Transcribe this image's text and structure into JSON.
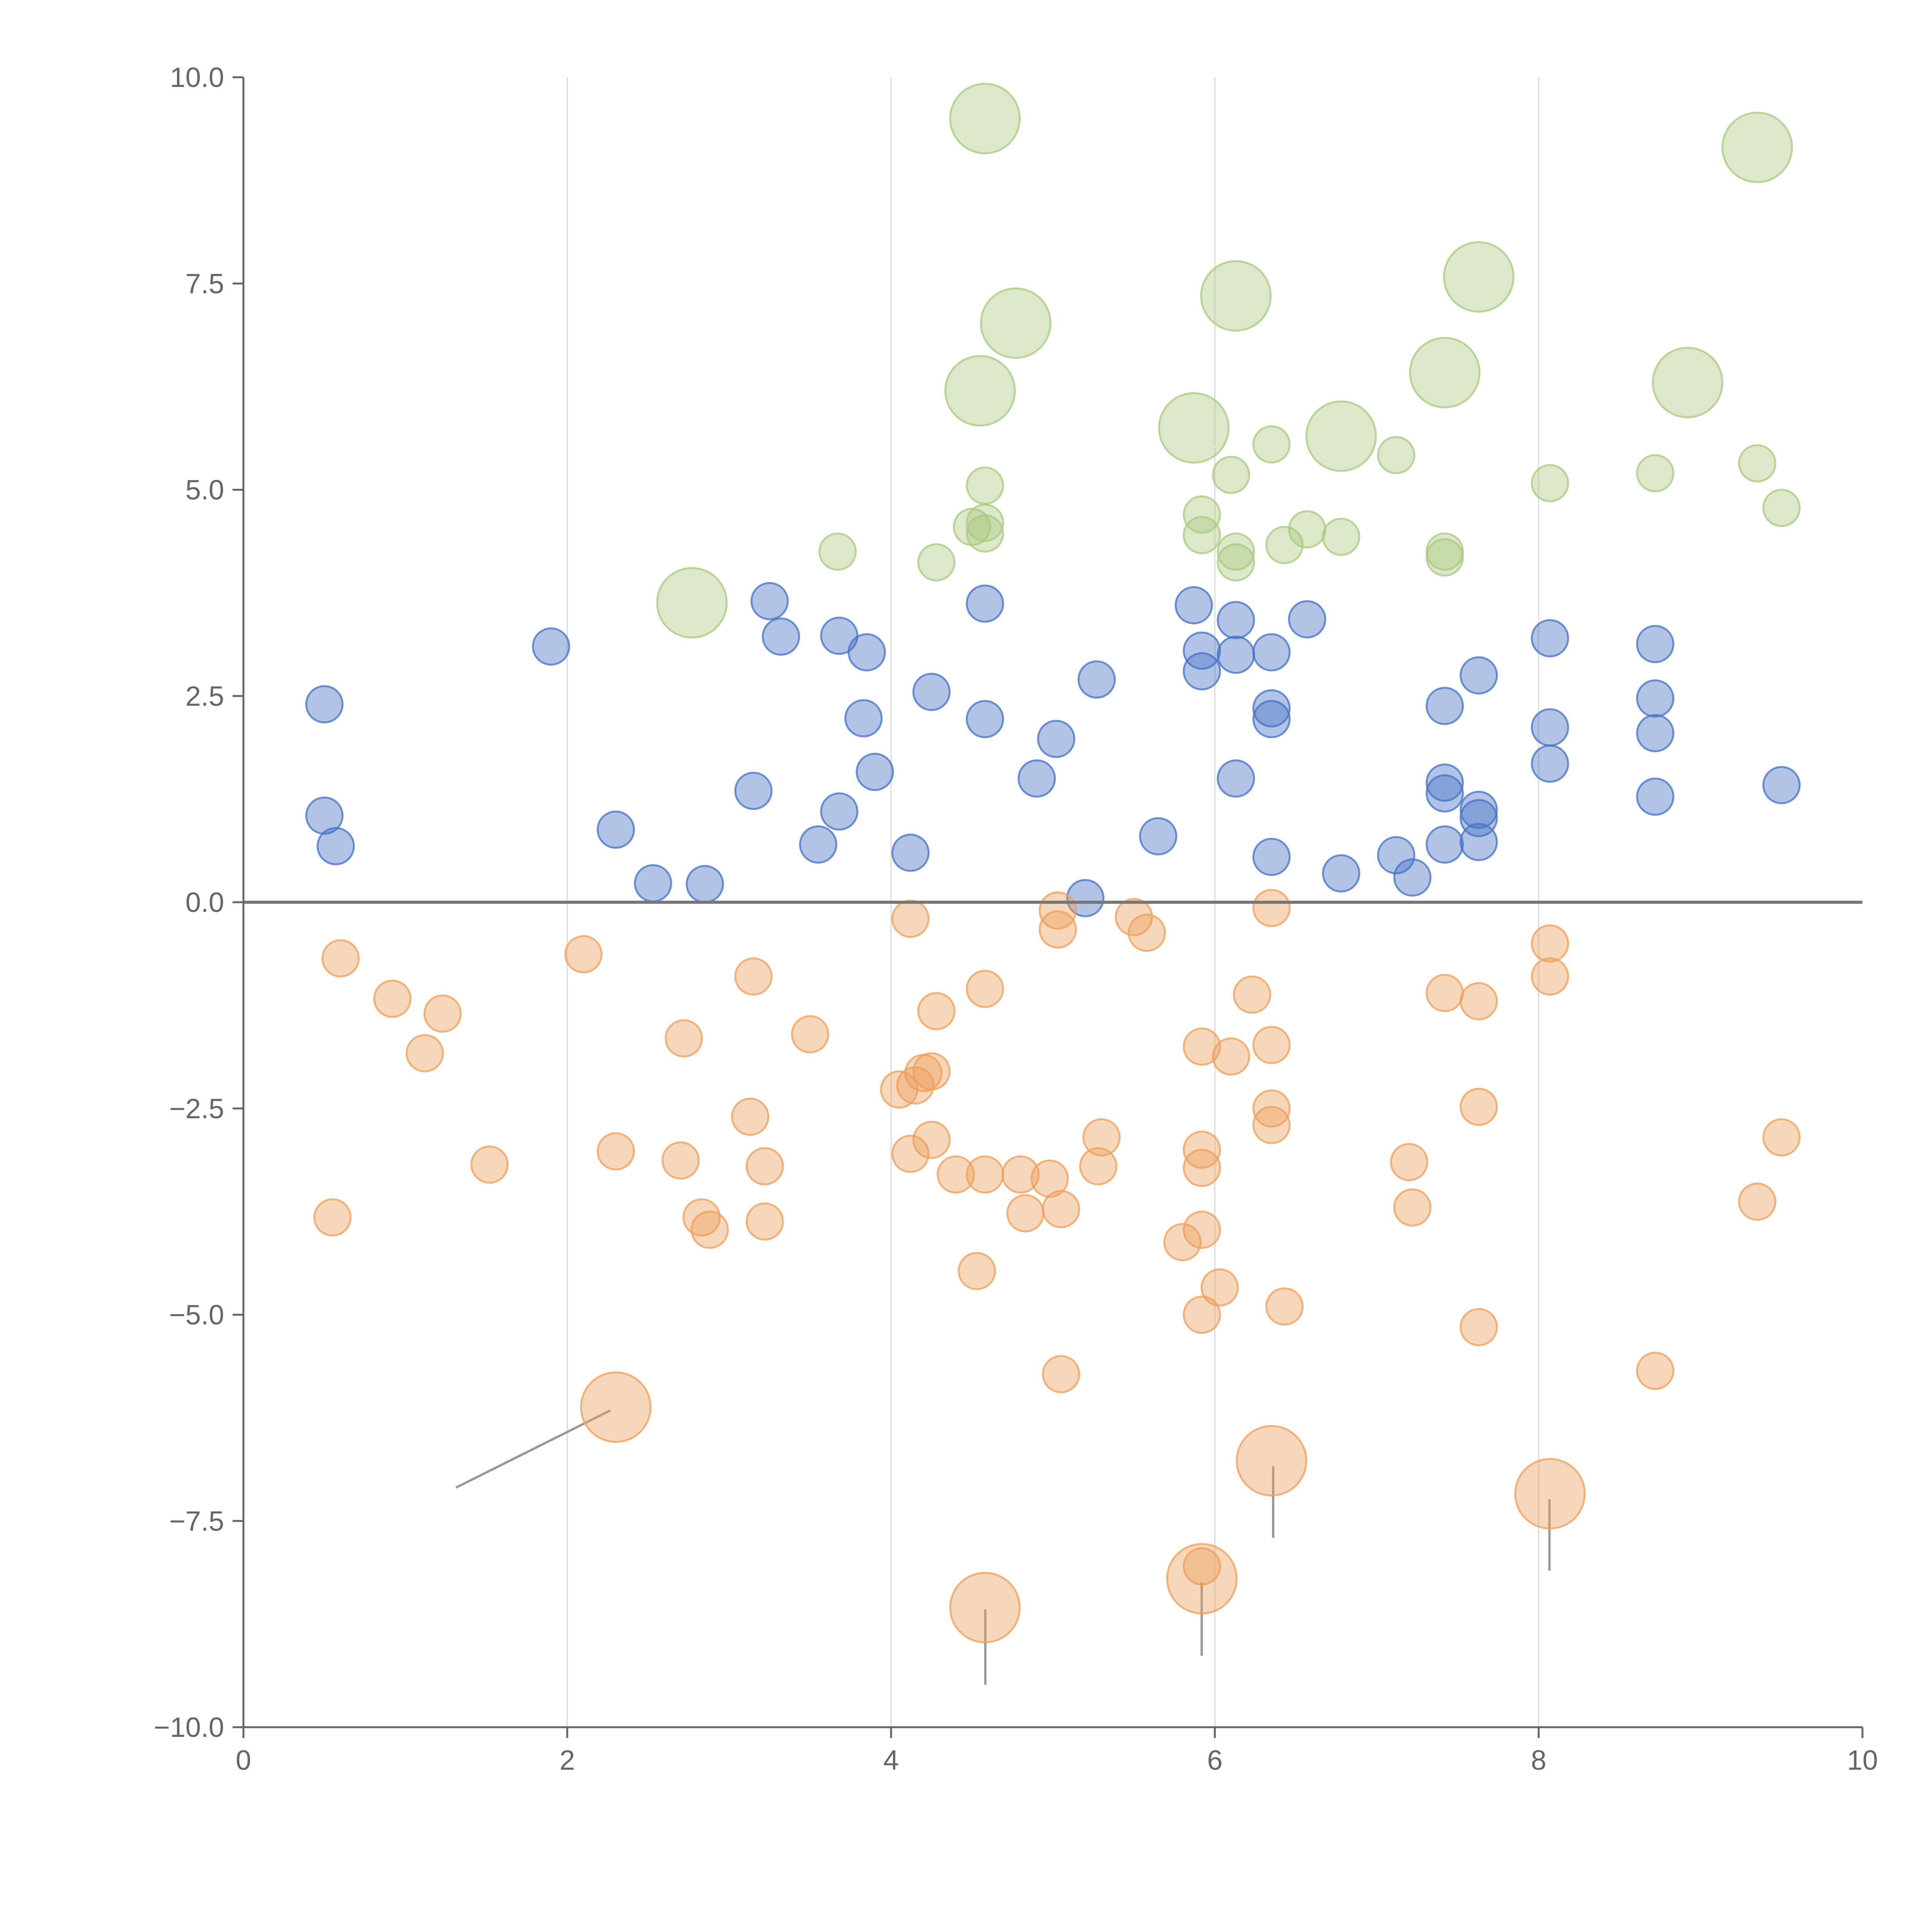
{
  "chart_data": {
    "type": "scatter",
    "title": "",
    "xlabel": "",
    "ylabel": "",
    "xlim": [
      0,
      10
    ],
    "ylim": [
      -10,
      10
    ],
    "x_ticks": [
      0,
      2,
      4,
      6,
      8,
      10
    ],
    "x_tick_labels": [
      "0",
      "2",
      "4",
      "6",
      "8",
      "10"
    ],
    "y_ticks": [
      -10,
      -7.5,
      -5,
      -2.5,
      0,
      2.5,
      5,
      7.5,
      10
    ],
    "y_tick_labels": [
      "−10.0",
      "−7.5",
      "−5.0",
      "−2.5",
      "0.0",
      "2.5",
      "5.0",
      "7.5",
      "10.0"
    ],
    "vertical_grid": true,
    "horizontal_grid": false,
    "zero_line": true,
    "legend": "none",
    "series": [
      {
        "color": "#4472c4",
        "points": [
          {
            "x": 0.5,
            "y": 2.4
          },
          {
            "x": 0.5,
            "y": 1.05
          },
          {
            "x": 0.57,
            "y": 0.68
          },
          {
            "x": 1.9,
            "y": 3.1
          },
          {
            "x": 2.3,
            "y": 0.88
          },
          {
            "x": 2.53,
            "y": 0.23
          },
          {
            "x": 2.85,
            "y": 0.22
          },
          {
            "x": 3.15,
            "y": 1.35
          },
          {
            "x": 3.25,
            "y": 3.65
          },
          {
            "x": 3.32,
            "y": 3.22
          },
          {
            "x": 3.55,
            "y": 0.7
          },
          {
            "x": 3.68,
            "y": 1.1
          },
          {
            "x": 3.68,
            "y": 3.23
          },
          {
            "x": 3.83,
            "y": 2.23
          },
          {
            "x": 3.85,
            "y": 3.03
          },
          {
            "x": 3.9,
            "y": 1.58
          },
          {
            "x": 4.12,
            "y": 0.6
          },
          {
            "x": 4.25,
            "y": 2.55
          },
          {
            "x": 4.58,
            "y": 3.62
          },
          {
            "x": 4.58,
            "y": 2.22
          },
          {
            "x": 4.9,
            "y": 1.5
          },
          {
            "x": 5.02,
            "y": 1.98
          },
          {
            "x": 5.2,
            "y": 0.05
          },
          {
            "x": 5.27,
            "y": 2.7
          },
          {
            "x": 5.65,
            "y": 0.8
          },
          {
            "x": 5.87,
            "y": 3.6
          },
          {
            "x": 5.92,
            "y": 3.05
          },
          {
            "x": 5.92,
            "y": 2.8
          },
          {
            "x": 6.13,
            "y": 3.42
          },
          {
            "x": 6.13,
            "y": 3.0
          },
          {
            "x": 6.13,
            "y": 1.5
          },
          {
            "x": 6.35,
            "y": 3.03
          },
          {
            "x": 6.35,
            "y": 2.35
          },
          {
            "x": 6.35,
            "y": 2.22
          },
          {
            "x": 6.35,
            "y": 0.55
          },
          {
            "x": 6.57,
            "y": 3.43
          },
          {
            "x": 6.78,
            "y": 0.35
          },
          {
            "x": 7.12,
            "y": 0.57
          },
          {
            "x": 7.22,
            "y": 0.3
          },
          {
            "x": 7.42,
            "y": 2.38
          },
          {
            "x": 7.42,
            "y": 1.45
          },
          {
            "x": 7.42,
            "y": 1.32
          },
          {
            "x": 7.42,
            "y": 0.7
          },
          {
            "x": 7.63,
            "y": 2.75
          },
          {
            "x": 7.63,
            "y": 1.12
          },
          {
            "x": 7.63,
            "y": 1.02
          },
          {
            "x": 7.63,
            "y": 0.73
          },
          {
            "x": 8.07,
            "y": 3.2
          },
          {
            "x": 8.07,
            "y": 2.12
          },
          {
            "x": 8.07,
            "y": 1.68
          },
          {
            "x": 8.72,
            "y": 3.13
          },
          {
            "x": 8.72,
            "y": 2.47
          },
          {
            "x": 8.72,
            "y": 2.05
          },
          {
            "x": 8.72,
            "y": 1.28
          },
          {
            "x": 9.5,
            "y": 1.42
          }
        ]
      },
      {
        "color": "#ed9f5a",
        "points": [
          {
            "x": 0.55,
            "y": -3.82
          },
          {
            "x": 0.6,
            "y": -0.68
          },
          {
            "x": 0.92,
            "y": -1.17
          },
          {
            "x": 1.12,
            "y": -1.83
          },
          {
            "x": 1.23,
            "y": -1.35
          },
          {
            "x": 1.52,
            "y": -3.18
          },
          {
            "x": 2.1,
            "y": -0.63
          },
          {
            "x": 2.3,
            "y": -3.02
          },
          {
            "x": 2.3,
            "y": -6.12,
            "size": "large"
          },
          {
            "x": 2.7,
            "y": -3.13
          },
          {
            "x": 2.72,
            "y": -1.65
          },
          {
            "x": 2.83,
            "y": -3.82
          },
          {
            "x": 2.88,
            "y": -3.97
          },
          {
            "x": 3.13,
            "y": -2.6
          },
          {
            "x": 3.15,
            "y": -0.9
          },
          {
            "x": 3.22,
            "y": -3.2
          },
          {
            "x": 3.22,
            "y": -3.87
          },
          {
            "x": 3.5,
            "y": -1.6
          },
          {
            "x": 4.05,
            "y": -2.27
          },
          {
            "x": 4.12,
            "y": -0.2
          },
          {
            "x": 4.12,
            "y": -3.05
          },
          {
            "x": 4.15,
            "y": -2.22
          },
          {
            "x": 4.2,
            "y": -2.07
          },
          {
            "x": 4.25,
            "y": -2.05
          },
          {
            "x": 4.25,
            "y": -2.88
          },
          {
            "x": 4.28,
            "y": -1.32
          },
          {
            "x": 4.4,
            "y": -3.3
          },
          {
            "x": 4.53,
            "y": -4.47
          },
          {
            "x": 4.58,
            "y": -1.05
          },
          {
            "x": 4.58,
            "y": -3.3
          },
          {
            "x": 4.58,
            "y": -8.55,
            "size": "large"
          },
          {
            "x": 4.8,
            "y": -3.3
          },
          {
            "x": 4.83,
            "y": -3.77
          },
          {
            "x": 4.98,
            "y": -3.35
          },
          {
            "x": 5.03,
            "y": -0.1
          },
          {
            "x": 5.03,
            "y": -0.33
          },
          {
            "x": 5.05,
            "y": -3.72
          },
          {
            "x": 5.05,
            "y": -5.72
          },
          {
            "x": 5.28,
            "y": -3.2
          },
          {
            "x": 5.3,
            "y": -2.85
          },
          {
            "x": 5.5,
            "y": -0.18
          },
          {
            "x": 5.58,
            "y": -0.37
          },
          {
            "x": 5.8,
            "y": -4.12
          },
          {
            "x": 5.92,
            "y": -1.75
          },
          {
            "x": 5.92,
            "y": -3.0
          },
          {
            "x": 5.92,
            "y": -3.22
          },
          {
            "x": 5.92,
            "y": -3.97
          },
          {
            "x": 5.92,
            "y": -5.0
          },
          {
            "x": 5.92,
            "y": -8.05
          },
          {
            "x": 5.92,
            "y": -8.2,
            "size": "large"
          },
          {
            "x": 6.03,
            "y": -4.67
          },
          {
            "x": 6.1,
            "y": -1.87
          },
          {
            "x": 6.23,
            "y": -1.12
          },
          {
            "x": 6.35,
            "y": -0.07
          },
          {
            "x": 6.35,
            "y": -1.73
          },
          {
            "x": 6.35,
            "y": -2.5
          },
          {
            "x": 6.35,
            "y": -2.7
          },
          {
            "x": 6.35,
            "y": -6.77,
            "size": "large"
          },
          {
            "x": 6.43,
            "y": -4.9
          },
          {
            "x": 7.2,
            "y": -3.15
          },
          {
            "x": 7.22,
            "y": -3.7
          },
          {
            "x": 7.42,
            "y": -1.1
          },
          {
            "x": 7.63,
            "y": -1.2
          },
          {
            "x": 7.63,
            "y": -2.48
          },
          {
            "x": 7.63,
            "y": -5.15
          },
          {
            "x": 8.07,
            "y": -0.5
          },
          {
            "x": 8.07,
            "y": -0.9
          },
          {
            "x": 8.07,
            "y": -7.17,
            "size": "large"
          },
          {
            "x": 8.72,
            "y": -5.68
          },
          {
            "x": 9.35,
            "y": -3.63
          },
          {
            "x": 9.5,
            "y": -2.85
          }
        ]
      },
      {
        "color": "#a9c97e",
        "points": [
          {
            "x": 2.77,
            "y": 3.63,
            "size": "large"
          },
          {
            "x": 3.67,
            "y": 4.25
          },
          {
            "x": 4.28,
            "y": 4.12
          },
          {
            "x": 4.5,
            "y": 4.55
          },
          {
            "x": 4.58,
            "y": 4.6
          },
          {
            "x": 4.58,
            "y": 4.47
          },
          {
            "x": 4.58,
            "y": 5.05
          },
          {
            "x": 4.55,
            "y": 6.2,
            "size": "large"
          },
          {
            "x": 4.58,
            "y": 9.5,
            "size": "large"
          },
          {
            "x": 4.77,
            "y": 7.02,
            "size": "large"
          },
          {
            "x": 5.87,
            "y": 5.75,
            "size": "large"
          },
          {
            "x": 5.92,
            "y": 4.7
          },
          {
            "x": 5.92,
            "y": 4.45
          },
          {
            "x": 6.1,
            "y": 5.18
          },
          {
            "x": 6.13,
            "y": 4.25
          },
          {
            "x": 6.13,
            "y": 4.12
          },
          {
            "x": 6.13,
            "y": 7.35,
            "size": "large"
          },
          {
            "x": 6.35,
            "y": 5.55
          },
          {
            "x": 6.43,
            "y": 4.33
          },
          {
            "x": 6.57,
            "y": 4.52
          },
          {
            "x": 6.78,
            "y": 5.65,
            "size": "large"
          },
          {
            "x": 6.78,
            "y": 4.43
          },
          {
            "x": 7.12,
            "y": 5.42
          },
          {
            "x": 7.42,
            "y": 4.25
          },
          {
            "x": 7.42,
            "y": 4.18
          },
          {
            "x": 7.42,
            "y": 6.42,
            "size": "large"
          },
          {
            "x": 7.63,
            "y": 7.58,
            "size": "large"
          },
          {
            "x": 8.07,
            "y": 5.08
          },
          {
            "x": 8.72,
            "y": 5.2
          },
          {
            "x": 8.92,
            "y": 6.3,
            "size": "large"
          },
          {
            "x": 9.35,
            "y": 5.32
          },
          {
            "x": 9.35,
            "y": 9.15,
            "size": "large"
          },
          {
            "x": 9.5,
            "y": 4.78
          }
        ]
      }
    ]
  }
}
